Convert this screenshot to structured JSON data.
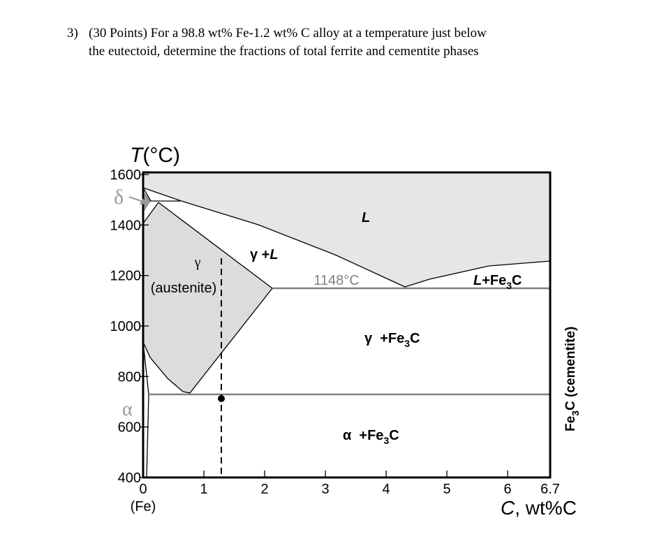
{
  "question": {
    "number": "3)",
    "lines": [
      "(30 Points) For a 98.8 wt% Fe-1.2 wt% C alloy at a temperature just below",
      "the eutectoid, determine the fractions of total ferrite and cementite phases"
    ]
  },
  "diagram": {
    "y_axis": {
      "symbol": "T",
      "unit": "(°C)",
      "lim": [
        400,
        1600
      ],
      "ticks": [
        400,
        600,
        800,
        1000,
        1200,
        1400,
        1600
      ]
    },
    "x_axis": {
      "symbol": "C",
      "unit": ", wt%C",
      "lim": [
        0,
        6.7
      ],
      "ticks": [
        0,
        1,
        2,
        3,
        4,
        5,
        6,
        6.7
      ],
      "left_end_label": "(Fe)",
      "right_end_label": [
        "Fe",
        "3",
        "C (cementite)"
      ]
    },
    "phase_labels": {
      "delta": "δ",
      "alpha": "α"
    },
    "regions": {
      "liquid": "L",
      "gamma_liquid": [
        "γ +",
        "L"
      ],
      "gamma": [
        "γ",
        "(austenite)"
      ],
      "eutectic_temperature": "1148°C",
      "liquid_cementite": [
        "L",
        "+Fe",
        "3",
        "C"
      ],
      "gamma_cementite": [
        "γ  +Fe",
        "3",
        "C"
      ],
      "alpha_cementite": [
        "α  +Fe",
        "3",
        "C"
      ]
    }
  }
}
